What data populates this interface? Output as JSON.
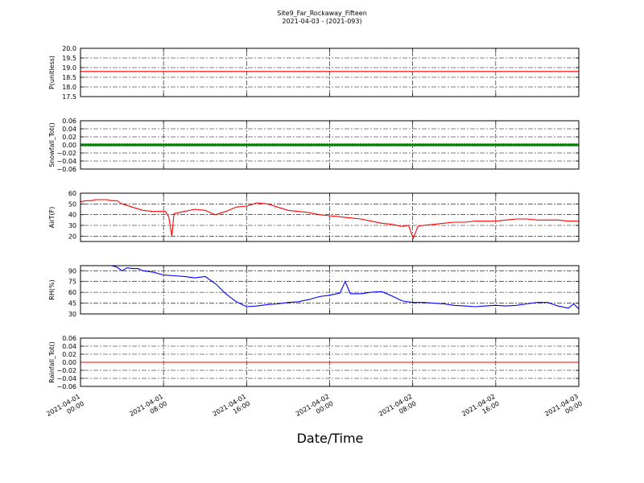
{
  "figure": {
    "title_line1": "Site9_Far_Rockaway_Fifteen",
    "title_line2": "2021-04-03 - (2021-093)",
    "xlabel": "Date/Time",
    "x_ticks": [
      {
        "line1": "2021-04-01",
        "line2": "00:00",
        "hour": 0
      },
      {
        "line1": "2021-04-01",
        "line2": "08:00",
        "hour": 8
      },
      {
        "line1": "2021-04-01",
        "line2": "16:00",
        "hour": 16
      },
      {
        "line1": "2021-04-02",
        "line2": "00:00",
        "hour": 24
      },
      {
        "line1": "2021-04-02",
        "line2": "08:00",
        "hour": 32
      },
      {
        "line1": "2021-04-02",
        "line2": "16:00",
        "hour": 40
      },
      {
        "line1": "2021-04-03",
        "line2": "00:00",
        "hour": 48
      }
    ]
  },
  "chart_data": [
    {
      "type": "line",
      "ylabel": "P(unitless)",
      "ylim": [
        17.5,
        20.0
      ],
      "yticks": [
        "17.5",
        "18.0",
        "18.5",
        "19.0",
        "19.5",
        "20.0"
      ],
      "grid": true,
      "color": "#ff0000",
      "series": [
        {
          "x": [
            0,
            48
          ],
          "y": [
            18.8,
            18.8
          ]
        }
      ]
    },
    {
      "type": "scatter",
      "ylabel": "Snowfall_Tot()",
      "ylim": [
        -0.06,
        0.06
      ],
      "yticks": [
        "−0.06",
        "−0.04",
        "−0.02",
        "0.00",
        "0.02",
        "0.04",
        "0.06"
      ],
      "grid": true,
      "color": "#008000",
      "series": [
        {
          "x_range": [
            0,
            48
          ],
          "interval_hours": 0.25,
          "y": 0.0
        }
      ]
    },
    {
      "type": "line",
      "ylabel": "AirT(F)",
      "ylim": [
        15,
        60
      ],
      "yticks": [
        "20",
        "30",
        "40",
        "50",
        "60"
      ],
      "grid": true,
      "color": "#ff0000",
      "series": [
        {
          "x": [
            0,
            0.5,
            1,
            1.5,
            2,
            2.5,
            3,
            3.5,
            4,
            5,
            6,
            7,
            8,
            8.2,
            8.5,
            8.8,
            9,
            10,
            11,
            12,
            13,
            14,
            15,
            16,
            17,
            18,
            19,
            20,
            21,
            22,
            23,
            24,
            25,
            26,
            27,
            28,
            29,
            30,
            31,
            31.6,
            32.05,
            32.5,
            33,
            34,
            35,
            36,
            37,
            38,
            39,
            40,
            41,
            42,
            43,
            44,
            45,
            46,
            47,
            48
          ],
          "y": [
            52,
            53,
            53,
            54,
            54,
            54,
            53,
            53,
            50,
            47,
            44,
            43,
            43,
            43,
            38,
            20,
            41,
            43,
            45,
            44,
            40,
            43,
            47,
            48,
            51,
            50,
            47,
            44,
            43,
            42,
            40,
            39,
            38,
            37,
            36,
            34,
            32,
            31,
            29,
            30,
            18,
            29,
            30,
            31,
            32,
            33,
            33,
            34,
            34,
            34,
            35,
            36,
            36,
            35,
            35,
            35,
            34,
            34
          ]
        }
      ]
    },
    {
      "type": "line",
      "ylabel": "RH(%)",
      "ylim": [
        30,
        97
      ],
      "yticks": [
        "30",
        "45",
        "60",
        "75",
        "90"
      ],
      "grid": true,
      "color": "#0000ff",
      "series": [
        {
          "x": [
            3,
            3.5,
            4,
            4.5,
            5,
            5.5,
            6,
            6.5,
            7,
            8,
            9,
            10,
            11,
            12,
            13,
            14,
            15,
            16,
            17,
            18,
            19,
            20,
            21,
            22,
            23,
            24,
            25,
            25.5,
            26,
            27,
            28,
            29,
            30,
            31,
            32,
            33,
            34,
            35,
            36,
            37,
            38,
            39,
            40,
            41,
            42,
            43,
            44,
            45,
            46,
            47,
            47.5,
            48
          ],
          "y": [
            97,
            95,
            90,
            94,
            93,
            93,
            90,
            89,
            88,
            84,
            83,
            82,
            80,
            82,
            72,
            58,
            47,
            40,
            41,
            43,
            44,
            46,
            47,
            50,
            54,
            56,
            59,
            75,
            58,
            58,
            60,
            61,
            55,
            48,
            46,
            46,
            45,
            44,
            42,
            41,
            40,
            41,
            42,
            41,
            42,
            44,
            46,
            46,
            41,
            38,
            44,
            37
          ]
        }
      ]
    },
    {
      "type": "line",
      "ylabel": "Rainfall_Tot()",
      "ylim": [
        -0.06,
        0.06
      ],
      "yticks": [
        "−0.06",
        "−0.04",
        "−0.02",
        "0.00",
        "0.02",
        "0.04",
        "0.06"
      ],
      "grid": true,
      "color": "#ff0000",
      "series": [
        {
          "x": [
            0,
            48
          ],
          "y": [
            0.0,
            0.0
          ]
        }
      ]
    }
  ]
}
